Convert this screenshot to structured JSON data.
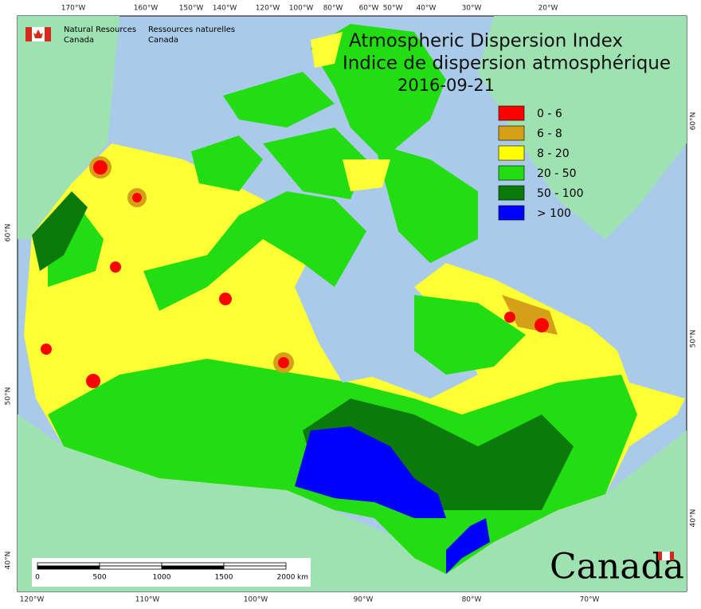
{
  "agency": {
    "en": [
      "Natural Resources",
      "Canada"
    ],
    "fr": [
      "Ressources naturelles",
      "Canada"
    ]
  },
  "title": {
    "en": "Atmospheric Dispersion Index",
    "fr": "Indice de dispersion atmosphérique",
    "date": "2016-09-21"
  },
  "legend": [
    {
      "label": "0 - 6",
      "color": "#ff0000"
    },
    {
      "label": "6 - 8",
      "color": "#d4a017"
    },
    {
      "label": "8 - 20",
      "color": "#ffff00"
    },
    {
      "label": "20 - 50",
      "color": "#22dd11"
    },
    {
      "label": "50 - 100",
      "color": "#0b7a0b"
    },
    {
      "label": "> 100",
      "color": "#0000ff"
    }
  ],
  "graticule": {
    "top": [
      "170°W",
      "160°W",
      "150°W",
      "140°W",
      "120°W",
      "100°W",
      "80°W",
      "60°W",
      "50°W",
      "40°W",
      "30°W",
      "20°W"
    ],
    "bottom": [
      "120°W",
      "110°W",
      "100°W",
      "90°W",
      "80°W",
      "70°W"
    ],
    "left": [
      "60°N",
      "50°N",
      "40°N"
    ],
    "right": [
      "60°N",
      "50°N",
      "40°N"
    ]
  },
  "scale_bar": {
    "labels": [
      "0",
      "500",
      "1000",
      "1500",
      "2000"
    ],
    "unit": "km"
  },
  "wordmark": "Canada"
}
